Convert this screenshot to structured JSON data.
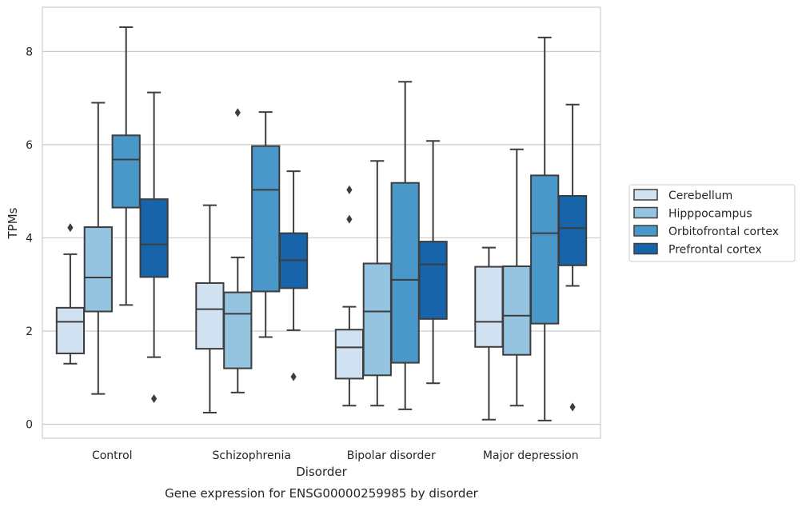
{
  "caption": "Gene expression for ENSG00000259985 by disorder",
  "chart_data": {
    "type": "box",
    "xlabel": "Disorder",
    "ylabel": "TPMs",
    "ylim": [
      -0.3,
      8.95
    ],
    "yticks": [
      0,
      2,
      4,
      6,
      8
    ],
    "grid": true,
    "legend_position": "right",
    "categories": [
      "Control",
      "Schizophrenia",
      "Bipolar disorder",
      "Major depression"
    ],
    "series": [
      {
        "name": "Cerebellum",
        "color": "#d0e1f2",
        "boxes": [
          {
            "whislo": 1.3,
            "q1": 1.52,
            "med": 2.2,
            "q3": 2.5,
            "whishi": 3.65,
            "fliers": [
              4.22
            ]
          },
          {
            "whislo": 0.25,
            "q1": 1.62,
            "med": 2.47,
            "q3": 3.03,
            "whishi": 4.7,
            "fliers": []
          },
          {
            "whislo": 0.4,
            "q1": 0.98,
            "med": 1.65,
            "q3": 2.03,
            "whishi": 2.52,
            "fliers": [
              4.4,
              5.03
            ]
          },
          {
            "whislo": 0.1,
            "q1": 1.66,
            "med": 2.2,
            "q3": 3.38,
            "whishi": 3.79,
            "fliers": []
          }
        ]
      },
      {
        "name": "Hipppocampus",
        "color": "#94c4df",
        "boxes": [
          {
            "whislo": 0.65,
            "q1": 2.42,
            "med": 3.15,
            "q3": 4.23,
            "whishi": 6.9,
            "fliers": []
          },
          {
            "whislo": 0.68,
            "q1": 1.2,
            "med": 2.37,
            "q3": 2.83,
            "whishi": 3.58,
            "fliers": [
              6.69
            ]
          },
          {
            "whislo": 0.4,
            "q1": 1.05,
            "med": 2.42,
            "q3": 3.45,
            "whishi": 5.65,
            "fliers": []
          },
          {
            "whislo": 0.4,
            "q1": 1.49,
            "med": 2.33,
            "q3": 3.39,
            "whishi": 5.9,
            "fliers": []
          }
        ]
      },
      {
        "name": "Orbitofrontal cortex",
        "color": "#4a98c9",
        "boxes": [
          {
            "whislo": 2.56,
            "q1": 4.65,
            "med": 5.68,
            "q3": 6.2,
            "whishi": 8.52,
            "fliers": []
          },
          {
            "whislo": 1.87,
            "q1": 2.85,
            "med": 5.03,
            "q3": 5.97,
            "whishi": 6.7,
            "fliers": []
          },
          {
            "whislo": 0.32,
            "q1": 1.32,
            "med": 3.1,
            "q3": 5.18,
            "whishi": 7.35,
            "fliers": []
          },
          {
            "whislo": 0.08,
            "q1": 2.16,
            "med": 4.1,
            "q3": 5.34,
            "whishi": 8.3,
            "fliers": []
          }
        ]
      },
      {
        "name": "Prefrontal cortex",
        "color": "#1764ab",
        "boxes": [
          {
            "whislo": 1.44,
            "q1": 3.16,
            "med": 3.86,
            "q3": 4.83,
            "whishi": 7.12,
            "fliers": [
              0.55
            ]
          },
          {
            "whislo": 2.02,
            "q1": 2.92,
            "med": 3.52,
            "q3": 4.1,
            "whishi": 5.43,
            "fliers": [
              1.02
            ]
          },
          {
            "whislo": 0.88,
            "q1": 2.26,
            "med": 3.43,
            "q3": 3.92,
            "whishi": 6.08,
            "fliers": []
          },
          {
            "whislo": 2.97,
            "q1": 3.41,
            "med": 4.21,
            "q3": 4.9,
            "whishi": 6.86,
            "fliers": [
              0.37
            ]
          }
        ]
      }
    ]
  }
}
